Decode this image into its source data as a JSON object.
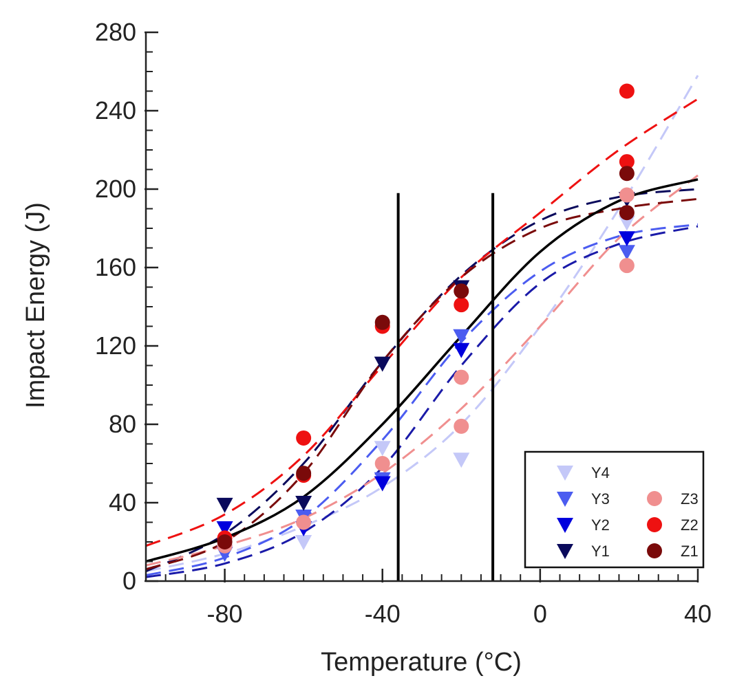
{
  "chart_data": {
    "type": "scatter",
    "title": "",
    "xlabel": "Temperature (°C)",
    "ylabel": "Impact Energy (J)",
    "xlim": [
      -100,
      40
    ],
    "ylim": [
      0,
      280
    ],
    "xticks": [
      -80,
      -40,
      0,
      40
    ],
    "yticks": [
      0,
      40,
      80,
      120,
      160,
      200,
      240,
      280
    ],
    "x_minor_step": 5,
    "y_minor_step": 10,
    "legend_position": "bottom-right",
    "series": [
      {
        "name": "Y4",
        "marker": "triangle-down",
        "color": "#c4c8f8",
        "x": [
          -80,
          -60,
          -40,
          -20,
          22
        ],
        "y": [
          15,
          20,
          68,
          62,
          183
        ]
      },
      {
        "name": "Y3",
        "marker": "triangle-down",
        "color": "#4b5cf0",
        "x": [
          -80,
          -60,
          -40,
          -20,
          22
        ],
        "y": [
          14,
          33,
          52,
          125,
          168
        ]
      },
      {
        "name": "Y2",
        "marker": "triangle-down",
        "color": "#0000dd",
        "x": [
          -80,
          -60,
          -40,
          -20,
          22
        ],
        "y": [
          27,
          27,
          50,
          118,
          175
        ]
      },
      {
        "name": "Y1",
        "marker": "triangle-down",
        "color": "#0a0a5c",
        "x": [
          -80,
          -60,
          -40,
          -20,
          22
        ],
        "y": [
          39,
          40,
          111,
          150,
          195
        ]
      },
      {
        "name": "Z3",
        "marker": "circle",
        "color": "#f08f8f",
        "x": [
          -80,
          -60,
          -40,
          -20,
          -20,
          22,
          22
        ],
        "y": [
          18,
          30,
          60,
          104,
          79,
          197,
          161
        ]
      },
      {
        "name": "Z2",
        "marker": "circle",
        "color": "#ee1111",
        "x": [
          -80,
          -60,
          -60,
          -40,
          -20,
          22,
          22
        ],
        "y": [
          22,
          73,
          54,
          130,
          141,
          250,
          214
        ]
      },
      {
        "name": "Z1",
        "marker": "circle",
        "color": "#7a0a0a",
        "x": [
          -80,
          -60,
          -40,
          -20,
          22,
          22
        ],
        "y": [
          20,
          55,
          132,
          148,
          208,
          188
        ]
      }
    ],
    "fits": [
      {
        "name": "Y4 fit",
        "style": "dashed",
        "color": "#c4c8f8",
        "x": [
          -100,
          -80,
          -60,
          -40,
          -20,
          0,
          20,
          40
        ],
        "y": [
          5,
          14,
          28,
          48,
          80,
          130,
          190,
          258
        ]
      },
      {
        "name": "Y3 fit",
        "style": "dashed",
        "color": "#4b5cf0",
        "x": [
          -100,
          -80,
          -60,
          -40,
          -20,
          0,
          20,
          40
        ],
        "y": [
          3,
          12,
          32,
          72,
          122,
          158,
          176,
          182
        ]
      },
      {
        "name": "Y2 fit",
        "style": "dashed",
        "color": "#1a1aa8",
        "x": [
          -100,
          -80,
          -60,
          -40,
          -20,
          0,
          20,
          40
        ],
        "y": [
          2,
          9,
          25,
          58,
          110,
          152,
          172,
          181
        ]
      },
      {
        "name": "Y1 fit",
        "style": "dashed",
        "color": "#0a0a5c",
        "x": [
          -100,
          -80,
          -60,
          -40,
          -20,
          0,
          20,
          40
        ],
        "y": [
          5,
          24,
          60,
          112,
          156,
          184,
          196,
          200
        ]
      },
      {
        "name": "Z3 fit",
        "style": "dashed",
        "color": "#f08f8f",
        "x": [
          -100,
          -80,
          -60,
          -40,
          -20,
          0,
          20,
          40
        ],
        "y": [
          8,
          18,
          32,
          55,
          88,
          130,
          175,
          207
        ]
      },
      {
        "name": "Z2 fit",
        "style": "dashed",
        "color": "#ee1111",
        "x": [
          -100,
          -80,
          -60,
          -40,
          -20,
          0,
          20,
          40
        ],
        "y": [
          18,
          34,
          64,
          110,
          155,
          188,
          220,
          246
        ]
      },
      {
        "name": "Z1 fit",
        "style": "dashed",
        "color": "#7a0a0a",
        "x": [
          -100,
          -80,
          -60,
          -40,
          -20,
          0,
          20,
          40
        ],
        "y": [
          6,
          20,
          55,
          112,
          155,
          180,
          190,
          195
        ]
      },
      {
        "name": "Mean fit",
        "style": "solid",
        "color": "#000000",
        "x": [
          -100,
          -80,
          -60,
          -40,
          -20,
          0,
          20,
          40
        ],
        "y": [
          10,
          22,
          43,
          80,
          125,
          168,
          194,
          205
        ]
      }
    ],
    "reference_lines": [
      {
        "name": "vline-1",
        "x": -36,
        "y_top": 198,
        "color": "#000000"
      },
      {
        "name": "vline-2",
        "x": -12,
        "y_top": 198,
        "color": "#000000"
      }
    ]
  }
}
